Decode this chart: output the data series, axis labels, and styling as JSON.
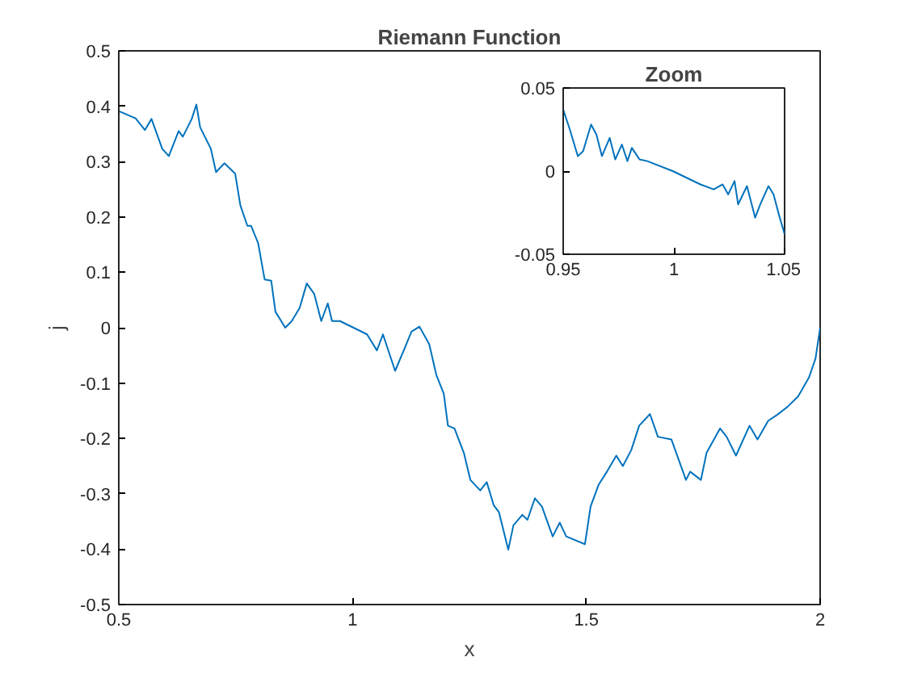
{
  "chart_data": [
    {
      "type": "line",
      "title": "Riemann Function",
      "xlabel": "x",
      "ylabel": "j",
      "xlim": [
        0.5,
        2
      ],
      "ylim": [
        -0.5,
        0.5
      ],
      "xticks": [
        0.5,
        1,
        1.5,
        2
      ],
      "yticks": [
        -0.5,
        -0.4,
        -0.3,
        -0.2,
        -0.1,
        0,
        0.1,
        0.2,
        0.3,
        0.4,
        0.5
      ],
      "grid": false,
      "marker": "none",
      "line_style": "solid",
      "x": [
        0.5,
        0.536,
        0.556,
        0.57,
        0.593,
        0.607,
        0.628,
        0.637,
        0.656,
        0.666,
        0.674,
        0.697,
        0.708,
        0.726,
        0.749,
        0.76,
        0.775,
        0.783,
        0.798,
        0.812,
        0.826,
        0.835,
        0.856,
        0.87,
        0.887,
        0.902,
        0.918,
        0.933,
        0.947,
        0.956,
        0.973,
        1.002,
        1.031,
        1.052,
        1.065,
        1.091,
        1.112,
        1.126,
        1.143,
        1.164,
        1.179,
        1.195,
        1.204,
        1.218,
        1.238,
        1.252,
        1.273,
        1.287,
        1.302,
        1.313,
        1.333,
        1.344,
        1.363,
        1.374,
        1.39,
        1.405,
        1.428,
        1.443,
        1.457,
        1.497,
        1.509,
        1.526,
        1.544,
        1.564,
        1.578,
        1.596,
        1.613,
        1.636,
        1.653,
        1.682,
        1.713,
        1.722,
        1.745,
        1.757,
        1.786,
        1.8,
        1.82,
        1.849,
        1.866,
        1.889,
        1.907,
        1.93,
        1.953,
        1.976,
        1.99,
        2
      ],
      "series": [
        {
          "color": "#0072bd",
          "values": [
            0.391,
            0.378,
            0.357,
            0.377,
            0.323,
            0.31,
            0.355,
            0.345,
            0.377,
            0.403,
            0.362,
            0.323,
            0.281,
            0.297,
            0.278,
            0.221,
            0.184,
            0.184,
            0.153,
            0.087,
            0.085,
            0.029,
            0.0,
            0.012,
            0.036,
            0.08,
            0.061,
            0.012,
            0.044,
            0.012,
            0.012,
            0.0,
            -0.012,
            -0.041,
            -0.012,
            -0.078,
            -0.036,
            -0.007,
            0.002,
            -0.03,
            -0.085,
            -0.119,
            -0.177,
            -0.182,
            -0.226,
            -0.275,
            -0.294,
            -0.279,
            -0.321,
            -0.333,
            -0.401,
            -0.357,
            -0.338,
            -0.347,
            -0.308,
            -0.323,
            -0.377,
            -0.352,
            -0.377,
            -0.391,
            -0.323,
            -0.284,
            -0.26,
            -0.231,
            -0.25,
            -0.221,
            -0.177,
            -0.156,
            -0.197,
            -0.202,
            -0.275,
            -0.26,
            -0.275,
            -0.226,
            -0.182,
            -0.197,
            -0.231,
            -0.177,
            -0.202,
            -0.168,
            -0.158,
            -0.143,
            -0.124,
            -0.09,
            -0.056,
            0.0
          ]
        }
      ]
    },
    {
      "type": "line",
      "title": "Zoom",
      "xlim": [
        0.95,
        1.05
      ],
      "ylim": [
        -0.05,
        0.05
      ],
      "xticks": [
        0.95,
        1,
        1.05
      ],
      "yticks": [
        -0.05,
        0,
        0.05
      ],
      "grid": false,
      "marker": "none",
      "line_style": "solid",
      "x": [
        0.95,
        0.953,
        0.9566,
        0.959,
        0.9626,
        0.965,
        0.9675,
        0.971,
        0.9735,
        0.9765,
        0.979,
        0.981,
        0.9845,
        0.988,
        0.9995,
        1.012,
        1.018,
        1.022,
        1.0245,
        1.0274,
        1.029,
        1.033,
        1.0367,
        1.039,
        1.0427,
        1.045,
        1.0476,
        1.05
      ],
      "series": [
        {
          "color": "#0072bd",
          "values": [
            0.037,
            0.025,
            0.009,
            0.012,
            0.028,
            0.022,
            0.009,
            0.02,
            0.007,
            0.016,
            0.006,
            0.014,
            0.007,
            0.006,
            0.0,
            -0.008,
            -0.011,
            -0.008,
            -0.014,
            -0.006,
            -0.02,
            -0.009,
            -0.028,
            -0.02,
            -0.009,
            -0.014,
            -0.027,
            -0.038
          ]
        }
      ]
    }
  ]
}
